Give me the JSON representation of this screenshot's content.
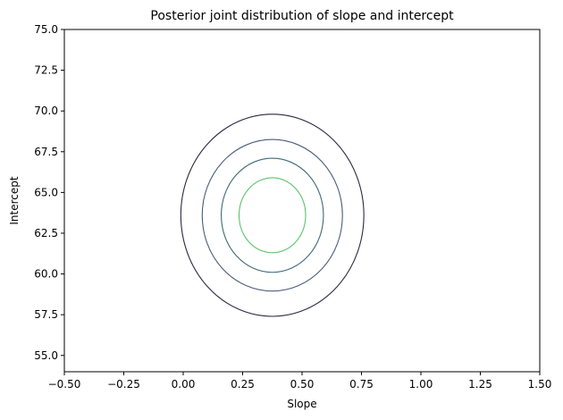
{
  "chart_data": {
    "type": "contour",
    "title": "Posterior joint distribution of slope and intercept",
    "xlabel": "Slope",
    "ylabel": "Intercept",
    "xlim": [
      -0.5,
      1.5
    ],
    "ylim": [
      54.0,
      75.0
    ],
    "xticks": [
      -0.5,
      -0.25,
      0.0,
      0.25,
      0.5,
      0.75,
      1.0,
      1.25,
      1.5
    ],
    "xtick_labels": [
      "−0.50",
      "−0.25",
      "0.00",
      "0.25",
      "0.50",
      "0.75",
      "1.00",
      "1.25",
      "1.50"
    ],
    "yticks": [
      55.0,
      57.5,
      60.0,
      62.5,
      65.0,
      67.5,
      70.0,
      72.5,
      75.0
    ],
    "ytick_labels": [
      "55.0",
      "57.5",
      "60.0",
      "62.5",
      "65.0",
      "67.5",
      "70.0",
      "72.5",
      "75.0"
    ],
    "grid": false,
    "contours": [
      {
        "center": [
          0.375,
          63.6
        ],
        "x_radius": 0.385,
        "y_radius": 6.2,
        "color": "#2b2a44"
      },
      {
        "center": [
          0.375,
          63.6
        ],
        "x_radius": 0.295,
        "y_radius": 4.65,
        "color": "#4b5d78"
      },
      {
        "center": [
          0.375,
          63.6
        ],
        "x_radius": 0.215,
        "y_radius": 3.5,
        "color": "#3f6a74"
      },
      {
        "center": [
          0.375,
          63.6
        ],
        "x_radius": 0.14,
        "y_radius": 2.3,
        "color": "#5cc46a"
      }
    ]
  }
}
